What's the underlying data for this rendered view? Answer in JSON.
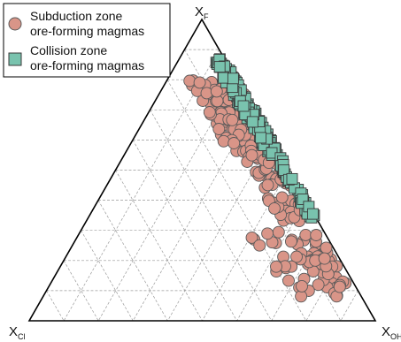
{
  "chart_data": {
    "type": "scatter",
    "plot": "ternary",
    "vertices": {
      "top": {
        "main": "X",
        "sub": "F"
      },
      "left": {
        "main": "X",
        "sub": "Cl"
      },
      "right": {
        "main": "X",
        "sub": "OH"
      }
    },
    "grid_step": 0.1,
    "grid": true,
    "legend_position": "top-left",
    "series": [
      {
        "name": "Subduction zone ore-forming magmas",
        "legend_lines": [
          "Subduction zone",
          "ore-forming magmas"
        ],
        "marker": "circle",
        "fill": "#d99588",
        "stroke": "#5a5a5a",
        "clusters": [
          {
            "xf": [
              0.82,
              0.52
            ],
            "xcl": [
              0.0,
              0.05
            ],
            "count": 35,
            "seed": 11
          },
          {
            "xf": [
              0.8,
              0.56
            ],
            "xcl": [
              0.05,
              0.14
            ],
            "count": 70,
            "seed": 12
          },
          {
            "xf": [
              0.55,
              0.33
            ],
            "xcl": [
              0.02,
              0.11
            ],
            "count": 60,
            "seed": 13
          },
          {
            "xf": [
              0.3,
              0.08
            ],
            "xcl": [
              0.02,
              0.12
            ],
            "count": 60,
            "seed": 14
          },
          {
            "xf": [
              0.3,
              0.08
            ],
            "xcl": [
              0.12,
              0.22
            ],
            "count": 20,
            "seed": 15
          }
        ]
      },
      {
        "name": "Collision zone ore-forming magmas",
        "legend_lines": [
          "Collision zone",
          "ore-forming magmas"
        ],
        "marker": "square",
        "fill": "#79c3ae",
        "stroke": "#3a3a3a",
        "clusters": [
          {
            "xf": [
              0.87,
              0.55
            ],
            "xcl": [
              0.0,
              0.035
            ],
            "count": 140,
            "seed": 21
          },
          {
            "xf": [
              0.55,
              0.34
            ],
            "xcl": [
              0.0,
              0.02
            ],
            "count": 40,
            "seed": 22
          }
        ]
      }
    ]
  }
}
